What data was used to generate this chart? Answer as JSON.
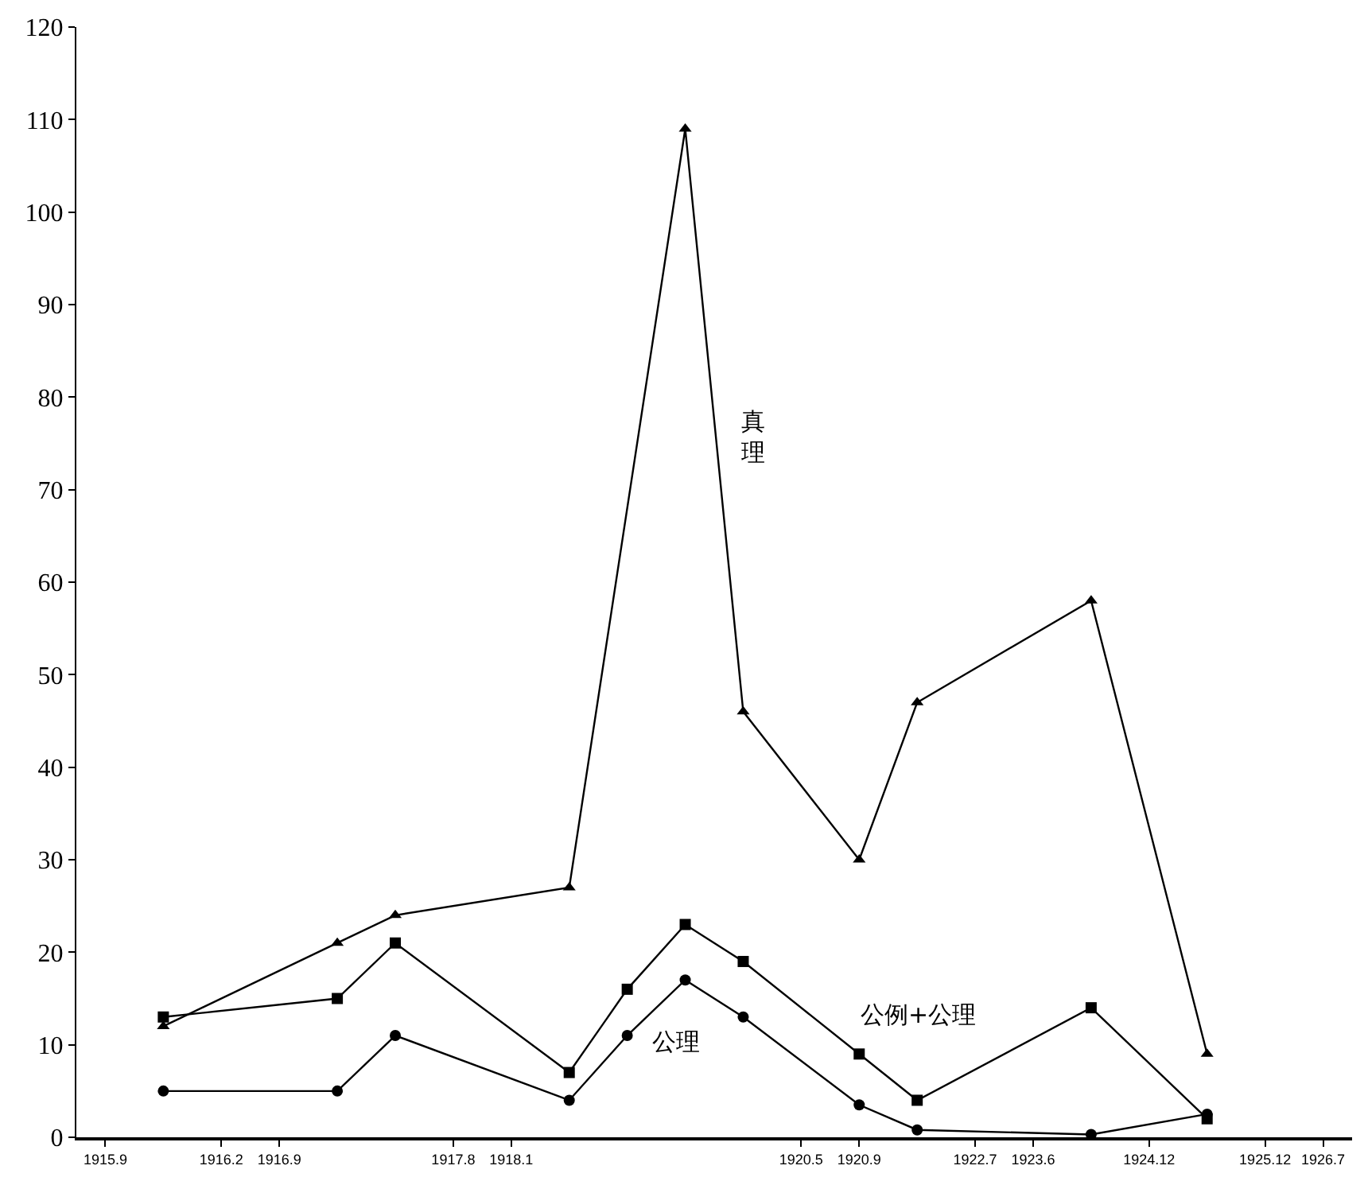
{
  "chart_data": {
    "type": "line",
    "categories": [
      "1915.9",
      null,
      "1916.2",
      "1916.9",
      null,
      null,
      "1917.8",
      "1918.1",
      null,
      null,
      null,
      null,
      "1920.5",
      "1920.9",
      null,
      "1922.7",
      "1923.6",
      null,
      "1924.12",
      null,
      "1925.12",
      "1926.7"
    ],
    "ylim": [
      0,
      120
    ],
    "yticks": [
      0,
      10,
      20,
      30,
      40,
      50,
      60,
      70,
      80,
      90,
      100,
      110,
      120
    ],
    "series": [
      {
        "color": "#000000",
        "marker": "triangle",
        "values": [
          null,
          12,
          null,
          null,
          21,
          24,
          null,
          null,
          27,
          null,
          109,
          46,
          null,
          30,
          47,
          null,
          null,
          58,
          null,
          9,
          null,
          null
        ]
      },
      {
        "color": "#000000",
        "marker": "square",
        "values": [
          null,
          13,
          null,
          null,
          15,
          21,
          null,
          null,
          7,
          16,
          23,
          19,
          null,
          9,
          4,
          null,
          null,
          14,
          null,
          2,
          null,
          null
        ]
      },
      {
        "color": "#000000",
        "marker": "circle",
        "values": [
          null,
          5,
          null,
          null,
          5,
          11,
          null,
          null,
          4,
          11,
          17,
          13,
          null,
          3.5,
          0.8,
          null,
          null,
          0.3,
          null,
          2.5,
          null,
          null
        ]
      }
    ],
    "annotations": [
      "真理",
      "公理",
      "公例+公理"
    ]
  }
}
